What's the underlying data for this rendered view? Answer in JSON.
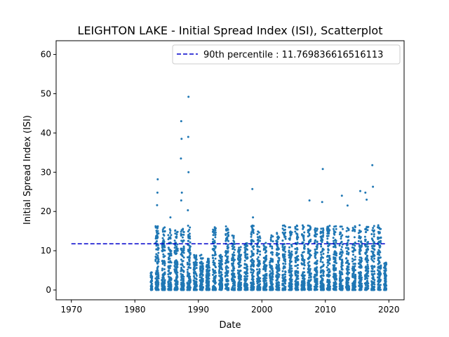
{
  "chart_data": {
    "type": "scatter",
    "title": "LEIGHTON LAKE - Initial Spread Index (ISI), Scatterplot",
    "xlabel": "Date",
    "ylabel": "Initial Spread Index (ISI)",
    "xlim": [
      1967.6,
      2022.4
    ],
    "ylim": [
      -2.5,
      63.5
    ],
    "x_ticks": [
      1970,
      1980,
      1990,
      2000,
      2010,
      2020
    ],
    "x_tick_labels": [
      "1970",
      "1980",
      "1990",
      "2000",
      "2010",
      "2020"
    ],
    "y_ticks": [
      0,
      10,
      20,
      30,
      40,
      50,
      60
    ],
    "y_tick_labels": [
      "0",
      "10",
      "20",
      "30",
      "40",
      "50",
      "60"
    ],
    "grid": false,
    "legend": {
      "placement": "top-right",
      "entries": [
        "90th percentile : 11.769836616516113"
      ]
    },
    "reference_line": {
      "label": "90th percentile : 11.769836616516113",
      "y": 11.769836616516113,
      "x_range": [
        1970,
        2019.7
      ],
      "style": "dashed",
      "color": "#0000cc"
    },
    "series": [
      {
        "color": "#1f77b4",
        "season_years": [
          1982,
          1983,
          1984,
          1985,
          1986,
          1987,
          1988,
          1989,
          1990,
          1991,
          1992,
          1993,
          1994,
          1995,
          1996,
          1997,
          1998,
          1999,
          2000,
          2001,
          2002,
          2003,
          2004,
          2005,
          2006,
          2007,
          2008,
          2009,
          2010,
          2011,
          2012,
          2013,
          2014,
          2015,
          2016,
          2017,
          2018,
          2019
        ],
        "season_max_values": [
          4.5,
          28,
          16,
          18,
          16,
          43,
          49,
          9,
          9,
          8,
          16,
          9,
          17,
          14,
          11,
          12,
          26,
          15,
          12,
          14,
          15,
          18,
          16,
          17,
          22,
          23,
          16,
          30.8,
          19,
          17,
          24,
          21,
          19,
          25,
          24,
          32,
          20,
          7
        ],
        "outliers": [
          {
            "x": 1983.6,
            "y": 28.2
          },
          {
            "x": 1983.55,
            "y": 24.8
          },
          {
            "x": 1983.5,
            "y": 21.6
          },
          {
            "x": 1985.6,
            "y": 18.5
          },
          {
            "x": 1987.3,
            "y": 43.0
          },
          {
            "x": 1987.35,
            "y": 38.5
          },
          {
            "x": 1987.25,
            "y": 33.5
          },
          {
            "x": 1987.4,
            "y": 24.8
          },
          {
            "x": 1987.3,
            "y": 22.8
          },
          {
            "x": 1988.45,
            "y": 49.2
          },
          {
            "x": 1988.4,
            "y": 39.0
          },
          {
            "x": 1988.45,
            "y": 30.0
          },
          {
            "x": 1988.35,
            "y": 20.3
          },
          {
            "x": 1998.5,
            "y": 25.7
          },
          {
            "x": 1998.6,
            "y": 18.5
          },
          {
            "x": 2009.6,
            "y": 30.8
          },
          {
            "x": 2009.5,
            "y": 22.4
          },
          {
            "x": 2012.6,
            "y": 24.0
          },
          {
            "x": 2015.5,
            "y": 25.2
          },
          {
            "x": 2016.3,
            "y": 24.8
          },
          {
            "x": 2016.5,
            "y": 23.0
          },
          {
            "x": 2017.4,
            "y": 31.8
          },
          {
            "x": 2017.5,
            "y": 26.3
          },
          {
            "x": 2007.5,
            "y": 22.8
          },
          {
            "x": 2013.5,
            "y": 21.5
          }
        ]
      }
    ]
  }
}
